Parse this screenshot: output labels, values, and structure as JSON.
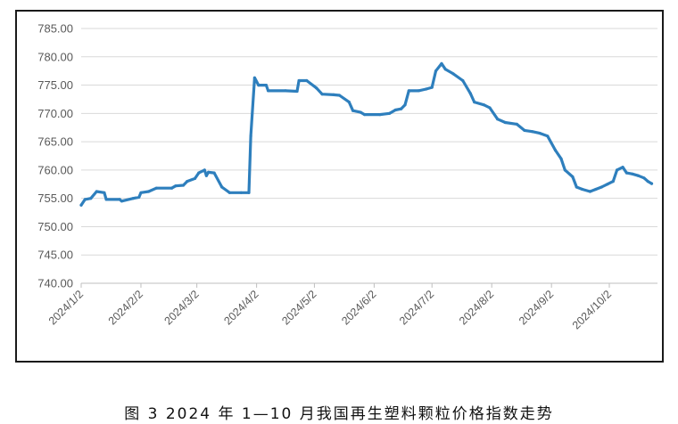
{
  "chart_data": {
    "type": "line",
    "title": "",
    "xlabel": "",
    "ylabel": "",
    "ylim": [
      740,
      785
    ],
    "y_ticks": [
      "785.00",
      "780.00",
      "775.00",
      "770.00",
      "765.00",
      "760.00",
      "755.00",
      "750.00",
      "745.00",
      "740.00"
    ],
    "x_ticks": [
      "2024/1/2",
      "2024/2/2",
      "2024/3/2",
      "2024/4/2",
      "2024/5/2",
      "2024/6/2",
      "2024/7/2",
      "2024/8/2",
      "2024/9/2",
      "2024/10/2"
    ],
    "grid": true,
    "color": "#2e7fbd",
    "series": [
      {
        "points": [
          [
            "2024/1/2",
            753.8
          ],
          [
            "2024/1/4",
            754.8
          ],
          [
            "2024/1/7",
            755.0
          ],
          [
            "2024/1/10",
            756.2
          ],
          [
            "2024/1/14",
            756.0
          ],
          [
            "2024/1/15",
            754.8
          ],
          [
            "2024/1/22",
            754.8
          ],
          [
            "2024/1/23",
            754.5
          ],
          [
            "2024/1/29",
            755.0
          ],
          [
            "2024/2/1",
            755.2
          ],
          [
            "2024/2/2",
            756.0
          ],
          [
            "2024/2/6",
            756.2
          ],
          [
            "2024/2/10",
            756.8
          ],
          [
            "2024/2/18",
            756.8
          ],
          [
            "2024/2/20",
            757.2
          ],
          [
            "2024/2/24",
            757.3
          ],
          [
            "2024/2/26",
            758.0
          ],
          [
            "2024/3/1",
            758.5
          ],
          [
            "2024/3/3",
            759.5
          ],
          [
            "2024/3/6",
            760.0
          ],
          [
            "2024/3/7",
            759.0
          ],
          [
            "2024/3/8",
            759.6
          ],
          [
            "2024/3/11",
            759.5
          ],
          [
            "2024/3/15",
            757.0
          ],
          [
            "2024/3/19",
            756.0
          ],
          [
            "2024/3/25",
            756.0
          ],
          [
            "2024/3/29",
            756.0
          ],
          [
            "2024/3/30",
            766.0
          ],
          [
            "2024/4/1",
            776.3
          ],
          [
            "2024/4/3",
            775.0
          ],
          [
            "2024/4/7",
            775.0
          ],
          [
            "2024/4/8",
            774.0
          ],
          [
            "2024/4/17",
            774.0
          ],
          [
            "2024/4/23",
            773.9
          ],
          [
            "2024/4/24",
            775.8
          ],
          [
            "2024/4/28",
            775.8
          ],
          [
            "2024/5/3",
            774.5
          ],
          [
            "2024/5/6",
            773.4
          ],
          [
            "2024/5/12",
            773.3
          ],
          [
            "2024/5/15",
            773.2
          ],
          [
            "2024/5/20",
            772.0
          ],
          [
            "2024/5/22",
            770.5
          ],
          [
            "2024/5/26",
            770.2
          ],
          [
            "2024/5/28",
            769.8
          ],
          [
            "2024/6/5",
            769.8
          ],
          [
            "2024/6/10",
            770.0
          ],
          [
            "2024/6/13",
            770.6
          ],
          [
            "2024/6/16",
            770.8
          ],
          [
            "2024/6/18",
            771.5
          ],
          [
            "2024/6/20",
            774.0
          ],
          [
            "2024/6/25",
            774.0
          ],
          [
            "2024/6/29",
            774.3
          ],
          [
            "2024/7/2",
            774.6
          ],
          [
            "2024/7/4",
            777.5
          ],
          [
            "2024/7/7",
            778.8
          ],
          [
            "2024/7/9",
            777.8
          ],
          [
            "2024/7/13",
            777.0
          ],
          [
            "2024/7/18",
            775.8
          ],
          [
            "2024/7/22",
            773.5
          ],
          [
            "2024/7/24",
            772.0
          ],
          [
            "2024/7/29",
            771.5
          ],
          [
            "2024/8/1",
            771.0
          ],
          [
            "2024/8/5",
            769.0
          ],
          [
            "2024/8/9",
            768.4
          ],
          [
            "2024/8/15",
            768.1
          ],
          [
            "2024/8/19",
            767.0
          ],
          [
            "2024/8/23",
            766.8
          ],
          [
            "2024/8/27",
            766.5
          ],
          [
            "2024/8/31",
            766.0
          ],
          [
            "2024/9/4",
            763.5
          ],
          [
            "2024/9/7",
            762.0
          ],
          [
            "2024/9/9",
            760.0
          ],
          [
            "2024/9/13",
            758.8
          ],
          [
            "2024/9/15",
            757.0
          ],
          [
            "2024/9/18",
            756.6
          ],
          [
            "2024/9/22",
            756.2
          ],
          [
            "2024/9/25",
            756.6
          ],
          [
            "2024/9/28",
            757.0
          ],
          [
            "2024/10/1",
            757.5
          ],
          [
            "2024/10/4",
            758.0
          ],
          [
            "2024/10/6",
            760.0
          ],
          [
            "2024/10/9",
            760.5
          ],
          [
            "2024/10/11",
            759.5
          ],
          [
            "2024/10/14",
            759.3
          ],
          [
            "2024/10/17",
            759.0
          ],
          [
            "2024/10/20",
            758.6
          ],
          [
            "2024/10/22",
            758.0
          ],
          [
            "2024/10/24",
            757.6
          ]
        ]
      }
    ]
  },
  "caption": "图 3 2024 年 1—10 月我国再生塑料颗粒价格指数走势"
}
